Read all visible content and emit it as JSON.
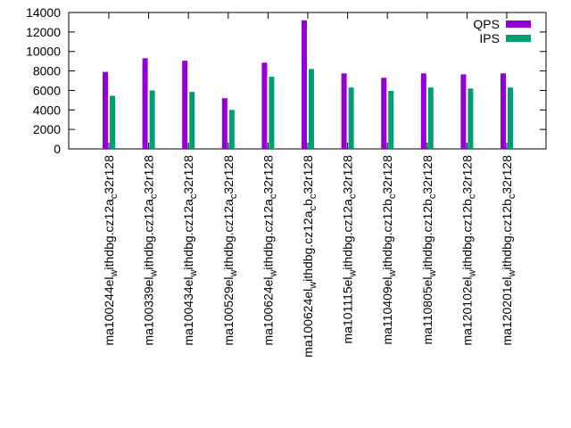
{
  "chart_data": {
    "type": "bar",
    "title": "",
    "xlabel": "",
    "ylabel": "",
    "ylim": [
      0,
      14000
    ],
    "yticks": [
      0,
      2000,
      4000,
      6000,
      8000,
      10000,
      12000,
      14000
    ],
    "grid": false,
    "legend_position": "top-right",
    "categories": [
      "ma100244el_withdbg.cz12a_c32r128",
      "ma100339el_withdbg.cz12a_c32r128",
      "ma100434el_withdbg.cz12a_c32r128",
      "ma100529el_withdbg.cz12a_c32r128",
      "ma100624el_withdbg.cz12a_c32r128",
      "ma100624el_withdbg.cz12a_cb_c32r128",
      "ma101115el_withdbg.cz12a_c32r128",
      "ma110409el_withdbg.cz12b_c32r128",
      "ma110805el_withdbg.cz12b_c32r128",
      "ma120102el_withdbg.cz12b_c32r128",
      "ma120201el_withdbg.cz12b_c32r128"
    ],
    "category_display": [
      {
        "pre": "ma100244el",
        "sub1": "w",
        "mid": "ithdbg.cz12a",
        "sub2": "c",
        "post": "32r128"
      },
      {
        "pre": "ma100339el",
        "sub1": "w",
        "mid": "ithdbg.cz12a",
        "sub2": "c",
        "post": "32r128"
      },
      {
        "pre": "ma100434el",
        "sub1": "w",
        "mid": "ithdbg.cz12a",
        "sub2": "c",
        "post": "32r128"
      },
      {
        "pre": "ma100529el",
        "sub1": "w",
        "mid": "ithdbg.cz12a",
        "sub2": "c",
        "post": "32r128"
      },
      {
        "pre": "ma100624el",
        "sub1": "w",
        "mid": "ithdbg.cz12a",
        "sub2": "c",
        "post": "32r128"
      },
      {
        "pre": "ma100624el",
        "sub1": "w",
        "mid": "ithdbg.cz12a",
        "sub2": "c",
        "post": "b",
        "sub3": "c",
        "post2": "32r128"
      },
      {
        "pre": "ma101115el",
        "sub1": "w",
        "mid": "ithdbg.cz12a",
        "sub2": "c",
        "post": "32r128"
      },
      {
        "pre": "ma110409el",
        "sub1": "w",
        "mid": "ithdbg.cz12b",
        "sub2": "c",
        "post": "32r128"
      },
      {
        "pre": "ma110805el",
        "sub1": "w",
        "mid": "ithdbg.cz12b",
        "sub2": "c",
        "post": "32r128"
      },
      {
        "pre": "ma120102el",
        "sub1": "w",
        "mid": "ithdbg.cz12b",
        "sub2": "c",
        "post": "32r128"
      },
      {
        "pre": "ma120201el",
        "sub1": "w",
        "mid": "ithdbg.cz12b",
        "sub2": "c",
        "post": "32r128"
      }
    ],
    "series": [
      {
        "name": "QPS",
        "color": "#9400d3",
        "values": [
          7900,
          9300,
          9050,
          5200,
          8850,
          13200,
          7750,
          7300,
          7750,
          7650,
          7750
        ]
      },
      {
        "name": "IPS",
        "color": "#009e73",
        "values": [
          5450,
          6000,
          5850,
          4000,
          7400,
          8200,
          6300,
          5950,
          6300,
          6200,
          6300
        ]
      }
    ]
  }
}
